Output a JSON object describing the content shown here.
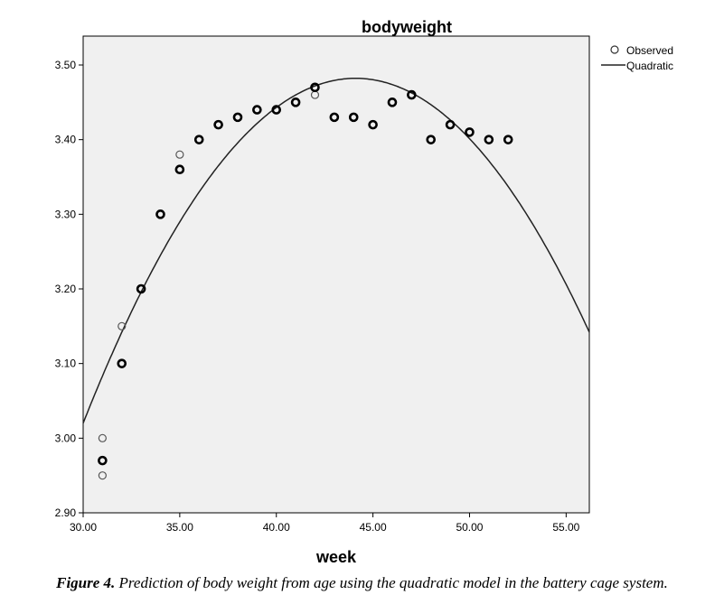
{
  "chart_data": {
    "type": "scatter",
    "title": "bodyweight",
    "xlabel": "week",
    "ylabel": "",
    "xlim": [
      30,
      56.2
    ],
    "ylim": [
      2.9,
      3.5
    ],
    "xticks": [
      "30.00",
      "35.00",
      "40.00",
      "45.00",
      "50.00",
      "55.00"
    ],
    "yticks": [
      "2.90",
      "3.00",
      "3.10",
      "3.20",
      "3.30",
      "3.40",
      "3.50"
    ],
    "legend": {
      "placement": "outside-top-right",
      "entries": [
        "Observed",
        "Quadratic"
      ]
    },
    "observed": [
      {
        "x": 31,
        "y": 3.0
      },
      {
        "x": 31,
        "y": 2.97,
        "bold": true
      },
      {
        "x": 31,
        "y": 2.95
      },
      {
        "x": 32,
        "y": 3.15
      },
      {
        "x": 32,
        "y": 3.1,
        "bold": true
      },
      {
        "x": 33,
        "y": 3.2,
        "bold": true
      },
      {
        "x": 34,
        "y": 3.3,
        "bold": true
      },
      {
        "x": 35,
        "y": 3.38
      },
      {
        "x": 35,
        "y": 3.36,
        "bold": true
      },
      {
        "x": 36,
        "y": 3.4,
        "bold": true
      },
      {
        "x": 37,
        "y": 3.42,
        "bold": true
      },
      {
        "x": 38,
        "y": 3.43,
        "bold": true
      },
      {
        "x": 39,
        "y": 3.44,
        "bold": true
      },
      {
        "x": 40,
        "y": 3.44,
        "bold": true
      },
      {
        "x": 41,
        "y": 3.45,
        "bold": true
      },
      {
        "x": 42,
        "y": 3.46
      },
      {
        "x": 42,
        "y": 3.47,
        "bold": true
      },
      {
        "x": 43,
        "y": 3.43,
        "bold": true
      },
      {
        "x": 44,
        "y": 3.43,
        "bold": true
      },
      {
        "x": 45,
        "y": 3.42,
        "bold": true
      },
      {
        "x": 46,
        "y": 3.45,
        "bold": true
      },
      {
        "x": 47,
        "y": 3.46,
        "bold": true
      },
      {
        "x": 48,
        "y": 3.4,
        "bold": true
      },
      {
        "x": 49,
        "y": 3.42,
        "bold": true
      },
      {
        "x": 50,
        "y": 3.41,
        "bold": true
      },
      {
        "x": 51,
        "y": 3.4,
        "bold": true
      },
      {
        "x": 52,
        "y": 3.4,
        "bold": true
      }
    ],
    "quadratic": {
      "b0": -1.0377,
      "b1": 0.20498,
      "b2": -0.002324
    }
  },
  "caption": {
    "label": "Figure 4.",
    "text": " Prediction of body weight from age using the quadratic model in the battery cage system."
  }
}
